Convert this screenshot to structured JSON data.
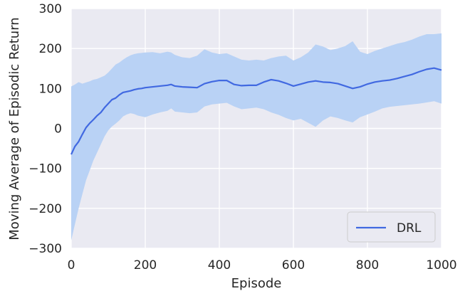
{
  "chart_data": {
    "type": "line",
    "title": "",
    "xlabel": "Episode",
    "ylabel": "Moving Average of Episodic Return",
    "xlim": [
      0,
      1000
    ],
    "ylim": [
      -300,
      300
    ],
    "xticks": [
      0,
      200,
      400,
      600,
      800,
      1000
    ],
    "yticks": [
      300,
      200,
      100,
      0,
      -100,
      -200,
      -300
    ],
    "xtick_labels": [
      "0",
      "200",
      "400",
      "600",
      "800",
      "1000"
    ],
    "ytick_labels": [
      "300",
      "200",
      "100",
      "0",
      "−100",
      "−200",
      "−300"
    ],
    "grid": true,
    "legend_position": "bottom-right",
    "background_color": "#eaeaf2",
    "series": [
      {
        "name": "DRL",
        "color": "#4169e1",
        "band_color": "#b9d2f5",
        "x": [
          0,
          10,
          20,
          30,
          40,
          50,
          60,
          70,
          80,
          90,
          100,
          110,
          120,
          130,
          140,
          150,
          160,
          170,
          180,
          190,
          200,
          220,
          240,
          260,
          270,
          280,
          300,
          320,
          340,
          360,
          380,
          400,
          420,
          440,
          460,
          480,
          500,
          520,
          540,
          560,
          580,
          600,
          620,
          640,
          660,
          680,
          700,
          720,
          740,
          760,
          780,
          800,
          820,
          840,
          860,
          880,
          900,
          920,
          940,
          960,
          980,
          1000
        ],
        "y": [
          -65,
          -45,
          -33,
          -15,
          2,
          13,
          22,
          32,
          40,
          52,
          62,
          72,
          76,
          84,
          90,
          92,
          94,
          97,
          99,
          100,
          102,
          104,
          106,
          108,
          110,
          106,
          104,
          103,
          102,
          112,
          117,
          120,
          120,
          110,
          107,
          108,
          108,
          116,
          122,
          119,
          113,
          106,
          111,
          116,
          119,
          116,
          115,
          112,
          106,
          100,
          104,
          111,
          116,
          119,
          121,
          125,
          130,
          135,
          142,
          148,
          151,
          146
        ],
        "upper": [
          105,
          110,
          116,
          112,
          115,
          118,
          122,
          124,
          128,
          132,
          140,
          150,
          160,
          165,
          172,
          178,
          183,
          186,
          188,
          189,
          190,
          191,
          188,
          192,
          190,
          184,
          178,
          176,
          182,
          198,
          190,
          186,
          188,
          180,
          172,
          170,
          172,
          170,
          176,
          180,
          182,
          170,
          178,
          190,
          210,
          205,
          196,
          200,
          206,
          218,
          192,
          186,
          194,
          200,
          206,
          212,
          216,
          222,
          230,
          236,
          236,
          238
        ],
        "lower": [
          -280,
          -240,
          -200,
          -165,
          -130,
          -105,
          -80,
          -60,
          -40,
          -20,
          -5,
          5,
          12,
          20,
          30,
          35,
          38,
          36,
          32,
          30,
          28,
          35,
          40,
          44,
          50,
          42,
          40,
          38,
          40,
          55,
          60,
          62,
          64,
          55,
          48,
          50,
          52,
          48,
          40,
          34,
          26,
          20,
          24,
          14,
          4,
          20,
          30,
          26,
          20,
          15,
          28,
          35,
          42,
          50,
          54,
          56,
          58,
          60,
          62,
          65,
          68,
          62
        ]
      }
    ]
  }
}
